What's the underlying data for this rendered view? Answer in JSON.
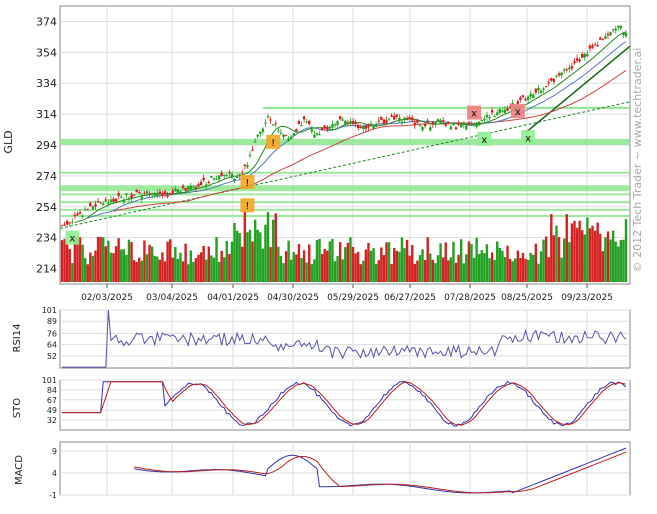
{
  "chart_data": {
    "type": "candlestick",
    "symbol": "GLD",
    "watermark": "© 2012 Tech Trader ~ www.techtrader.ai",
    "x_ticks": [
      "02/03/2025",
      "03/04/2025",
      "04/01/2025",
      "04/30/2025",
      "05/29/2025",
      "06/27/2025",
      "07/28/2025",
      "08/25/2025",
      "09/23/2025"
    ],
    "price": {
      "ylabel": "GLD",
      "ylim": [
        204,
        384
      ],
      "yticks": [
        374,
        354,
        334,
        314,
        294,
        274,
        254,
        234,
        214
      ],
      "anchors": [
        [
          0,
          241
        ],
        [
          5,
          247
        ],
        [
          12,
          254
        ],
        [
          20,
          259
        ],
        [
          28,
          262
        ],
        [
          34,
          263
        ],
        [
          40,
          261
        ],
        [
          46,
          265
        ],
        [
          52,
          267
        ],
        [
          58,
          272
        ],
        [
          64,
          276
        ],
        [
          68,
          272
        ],
        [
          72,
          281
        ],
        [
          76,
          300
        ],
        [
          80,
          313
        ],
        [
          84,
          304
        ],
        [
          89,
          299
        ],
        [
          94,
          310
        ],
        [
          98,
          301
        ],
        [
          104,
          306
        ],
        [
          110,
          311
        ],
        [
          116,
          305
        ],
        [
          122,
          308
        ],
        [
          128,
          311
        ],
        [
          134,
          310
        ],
        [
          140,
          306
        ],
        [
          146,
          309
        ],
        [
          152,
          306
        ],
        [
          158,
          307
        ],
        [
          164,
          311
        ],
        [
          170,
          316
        ],
        [
          176,
          320
        ],
        [
          182,
          327
        ],
        [
          188,
          333
        ],
        [
          194,
          340
        ],
        [
          200,
          348
        ],
        [
          206,
          357
        ],
        [
          211,
          364
        ],
        [
          214,
          370
        ],
        [
          216,
          370
        ],
        [
          219,
          367
        ]
      ],
      "support_levels": [
        296,
        276,
        266,
        262,
        257,
        252,
        248
      ],
      "resistance_band": [
        296,
        318
      ],
      "signals": [
        {
          "type": "buy",
          "label": "x",
          "index": 4,
          "value": 234
        },
        {
          "type": "alert",
          "label": "!",
          "index": 72,
          "value": 270
        },
        {
          "type": "alert",
          "label": "!",
          "index": 72,
          "value": 255
        },
        {
          "type": "alert",
          "label": "!",
          "index": 82,
          "value": 296
        },
        {
          "type": "sell",
          "label": "x",
          "index": 160,
          "value": 315
        },
        {
          "type": "sell",
          "label": "x",
          "index": 177,
          "value": 316
        },
        {
          "type": "buy",
          "label": "x",
          "index": 164,
          "value": 298
        },
        {
          "type": "buy",
          "label": "x",
          "index": 181,
          "value": 299
        }
      ]
    },
    "rsi": {
      "label": "RSI14",
      "ylim": [
        39,
        101
      ],
      "yticks": [
        101,
        89,
        76,
        64,
        52
      ]
    },
    "sto": {
      "label": "STO",
      "ylim": [
        15,
        101
      ],
      "yticks": [
        101,
        84,
        67,
        49,
        32
      ]
    },
    "macd": {
      "label": "MACD",
      "ylim": [
        -1,
        11
      ],
      "yticks": [
        9,
        4,
        -1
      ]
    },
    "colors": {
      "up": "#22a022",
      "down": "#d42020",
      "band": "#8ee68e",
      "line_blue": "#3333aa",
      "line_red": "#bb2020",
      "ma_red": "#cc4444",
      "ma_blue": "#5577bb",
      "ma_green": "#228822"
    }
  }
}
